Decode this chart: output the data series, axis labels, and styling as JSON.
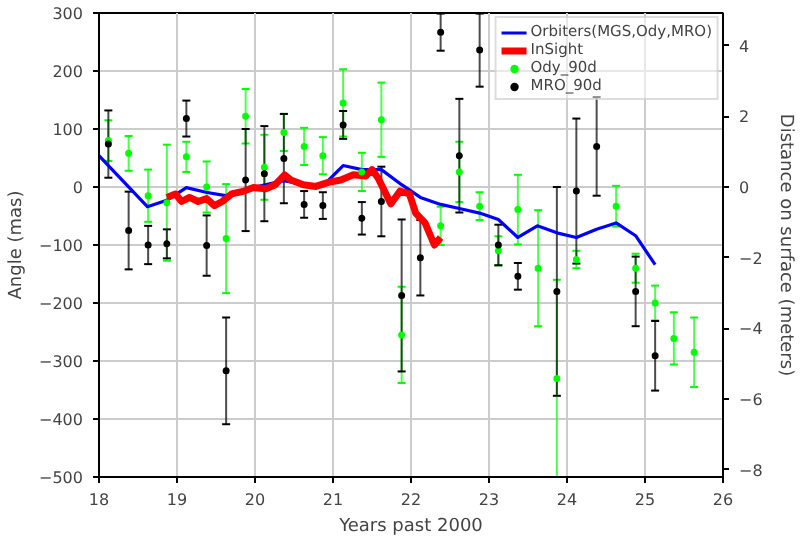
{
  "chart_data": {
    "type": "line",
    "xlabel": "Years past 2000",
    "ylabel": "Angle (mas)",
    "y2label": "Distance on surface (meters)",
    "xlim": [
      18,
      26
    ],
    "xticks": [
      18,
      19,
      20,
      21,
      22,
      23,
      24,
      25,
      26
    ],
    "ylim": [
      -500,
      300
    ],
    "yticks": [
      -500,
      -400,
      -300,
      -200,
      -100,
      0,
      100,
      200,
      300
    ],
    "y2lim": [
      -8.2,
      4.92
    ],
    "y2ticks": [
      -8,
      -6,
      -4,
      -2,
      0,
      2,
      4
    ],
    "grid": true,
    "legend": "top right",
    "series": [
      {
        "name": "Orbiters(MGS,Ody,MRO)",
        "color": "#0000ff",
        "x": [
          18.0,
          18.12,
          18.62,
          18.87,
          19.12,
          19.37,
          19.62,
          19.87,
          20.37,
          20.63,
          20.87,
          21.13,
          21.37,
          21.62,
          21.88,
          22.12,
          22.38,
          22.62,
          22.88,
          23.12,
          23.37,
          23.62,
          23.87,
          24.12,
          24.38,
          24.63,
          24.88,
          25.13
        ],
        "values": [
          54,
          37,
          -34,
          -23,
          -1,
          -9,
          -15,
          -4,
          11,
          4,
          2,
          37,
          30,
          30,
          4,
          -18,
          -30,
          -37,
          -45,
          -56,
          -87,
          -67,
          -79,
          -87,
          -73,
          -62,
          -84,
          -134
        ]
      },
      {
        "name": "InSight",
        "color": "#ff0000",
        "x": [
          18.87,
          18.98,
          19.06,
          19.16,
          19.27,
          19.38,
          19.48,
          19.58,
          19.7,
          19.86,
          19.98,
          20.14,
          20.26,
          20.38,
          20.46,
          20.62,
          20.78,
          20.94,
          21.1,
          21.26,
          21.42,
          21.5,
          21.58,
          21.66,
          21.74,
          21.86,
          21.98,
          22.06,
          22.18,
          22.3,
          22.38
        ],
        "values": [
          -18,
          -12,
          -25,
          -18,
          -25,
          -20,
          -32,
          -25,
          -12,
          -7,
          -1,
          -3,
          4,
          21,
          12,
          4,
          1,
          8,
          12,
          21,
          19,
          30,
          15,
          -7,
          -29,
          -7,
          -12,
          -45,
          -62,
          -100,
          -87
        ]
      },
      {
        "name": "Ody_90d",
        "type": "scatter",
        "marker": "circle",
        "color": "#00ff00",
        "x": [
          18.12,
          18.38,
          18.63,
          18.87,
          19.12,
          19.38,
          19.63,
          19.88,
          20.12,
          20.37,
          20.63,
          20.87,
          21.13,
          21.37,
          21.62,
          21.88,
          22.38,
          22.62,
          22.88,
          23.12,
          23.37,
          23.63,
          23.87,
          24.12,
          24.63,
          24.88,
          25.13,
          25.37,
          25.63
        ],
        "values": [
          80,
          58,
          -15,
          -27,
          52,
          0,
          -89,
          122,
          34,
          94,
          70,
          54,
          145,
          26,
          116,
          -255,
          -67,
          26,
          -33,
          -110,
          -39,
          -140,
          -330,
          -125,
          -33,
          -140,
          -200,
          -261,
          -285
        ],
        "errors": [
          35,
          30,
          45,
          100,
          26,
          44,
          94,
          47,
          56,
          32,
          32,
          32,
          58,
          33,
          64,
          83,
          33,
          52,
          24,
          25,
          60,
          100,
          170,
          15,
          35,
          25,
          30,
          45,
          60
        ]
      },
      {
        "name": "MRO_90d",
        "type": "scatter",
        "marker": "circle",
        "color": "#000000",
        "x": [
          18.12,
          18.38,
          18.63,
          18.87,
          19.12,
          19.38,
          19.63,
          19.88,
          20.12,
          20.37,
          20.63,
          20.87,
          21.13,
          21.37,
          21.62,
          21.88,
          22.12,
          22.38,
          22.62,
          22.88,
          23.12,
          23.37,
          23.87,
          24.12,
          24.38,
          24.88,
          25.13
        ],
        "values": [
          74,
          -75,
          -100,
          -98,
          118,
          -101,
          -317,
          12,
          23,
          49,
          -30,
          -32,
          107,
          -54,
          -25,
          -187,
          -122,
          267,
          54,
          236,
          -100,
          -154,
          -180,
          -7,
          70,
          -180,
          -291
        ],
        "errors": [
          58,
          67,
          33,
          25,
          31,
          52,
          92,
          88,
          82,
          77,
          23,
          23,
          24,
          28,
          60,
          131,
          65,
          32,
          98,
          63,
          35,
          23,
          180,
          125,
          85,
          60,
          60
        ]
      }
    ]
  }
}
